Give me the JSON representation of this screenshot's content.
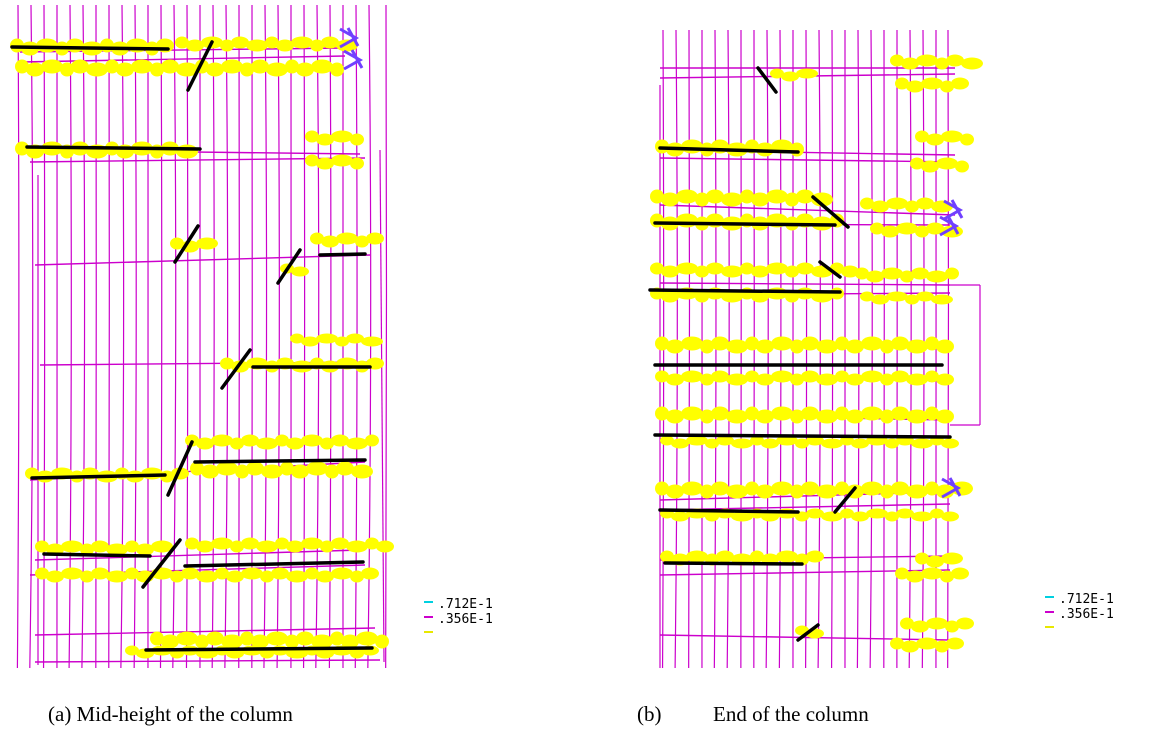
{
  "panels": [
    {
      "id": "a",
      "caption_label": "(a) Mid-height of the column",
      "caption_label_only": "(a)",
      "caption_text": "Mid-height of the column"
    },
    {
      "id": "b",
      "caption_label": "(b)",
      "caption_text": "End of the column"
    }
  ],
  "legend": {
    "entries": [
      {
        "value": ".712E-1",
        "color": "#00d0e0"
      },
      {
        "value": ".356E-1",
        "color": "#cc00cc"
      },
      {
        "value": "",
        "color": "#e8e800"
      }
    ]
  },
  "colors": {
    "mesh": "#cc00cc",
    "crack_marker": "#ffff00",
    "crack_line": "#000000",
    "crush_marker": "#7040ff"
  }
}
